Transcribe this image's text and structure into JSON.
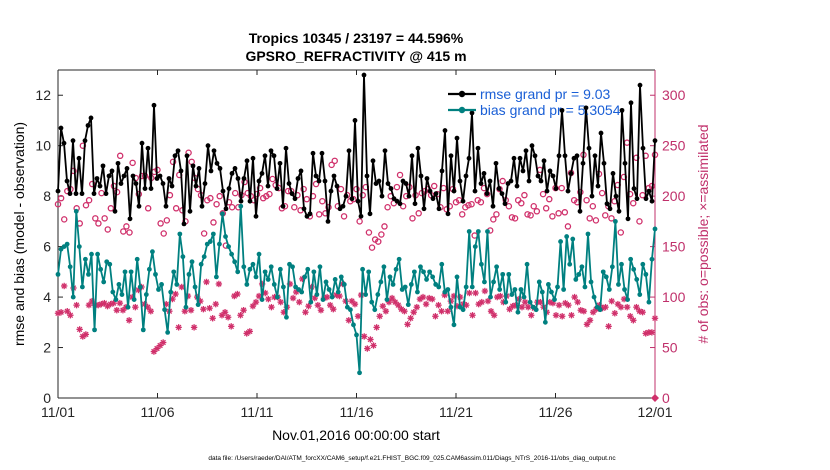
{
  "chart_data": {
    "type": "line",
    "title": "Tropics 10345 / 23197 = 44.596%",
    "subtitle": "GPSRO_REFRACTIVITY @ 415 m",
    "xlabel": "Nov.01,2016 00:00:00 start",
    "ylabel_left": "rmse and bias (model - observation)",
    "ylabel_right": "# of obs: o=possible; ×=assimilated",
    "footer": "data file: /Users/raeder/DAI/ATM_forcXX/CAM6_setup/f.e21.FHIST_BGC.f09_025.CAM6assim.011/Diags_NTrS_2016-11/obs_diag_output.nc",
    "xlim": [
      0,
      30
    ],
    "ylim_left": [
      0,
      13
    ],
    "ylim_right": [
      0,
      325
    ],
    "x_ticks": [
      {
        "x": 0,
        "label": "11/01"
      },
      {
        "x": 5,
        "label": "11/06"
      },
      {
        "x": 10,
        "label": "11/11"
      },
      {
        "x": 15,
        "label": "11/16"
      },
      {
        "x": 20,
        "label": "11/21"
      },
      {
        "x": 25,
        "label": "11/26"
      },
      {
        "x": 30,
        "label": "12/01"
      }
    ],
    "y_ticks_left": [
      {
        "v": 0,
        "label": "0"
      },
      {
        "v": 2,
        "label": "2"
      },
      {
        "v": 4,
        "label": "4"
      },
      {
        "v": 6,
        "label": "6"
      },
      {
        "v": 8,
        "label": "8"
      },
      {
        "v": 10,
        "label": "10"
      },
      {
        "v": 12,
        "label": "12"
      }
    ],
    "y_ticks_right": [
      {
        "v": 0,
        "label": "0"
      },
      {
        "v": 50,
        "label": "50"
      },
      {
        "v": 100,
        "label": "100"
      },
      {
        "v": 150,
        "label": "150"
      },
      {
        "v": 200,
        "label": "200"
      },
      {
        "v": 250,
        "label": "250"
      },
      {
        "v": 300,
        "label": "300"
      }
    ],
    "legend": {
      "placement": "top-right",
      "entries": [
        {
          "label": "rmse grand pr = 9.03",
          "color": "#000000",
          "text_color": "#1a5fd6"
        },
        {
          "label": "bias grand pr = 5.3054",
          "color": "#008080",
          "text_color": "#1a5fd6"
        }
      ]
    },
    "series": [
      {
        "name": "rmse",
        "color": "#000000",
        "values": [
          8.2,
          10.7,
          10.1,
          8.6,
          8.1,
          10.2,
          8.1,
          9.5,
          8.1,
          10.2,
          10.8,
          11.1,
          8.1,
          8.7,
          8.4,
          9.2,
          8.1,
          8.8,
          9.0,
          7.4,
          9.3,
          8.5,
          8.8,
          9.1,
          7.1,
          8.8,
          8.5,
          7.6,
          10.1,
          8.3,
          9.9,
          8.3,
          11.6,
          8.7,
          8.8,
          8.5,
          7.6,
          8.7,
          8.4,
          9.6,
          9.8,
          9.0,
          6.9,
          9.6,
          7.4,
          9.2,
          8.4,
          9.1,
          7.6,
          8.5,
          10.0,
          9.0,
          9.8,
          9.3,
          9.1,
          8.2,
          7.5,
          8.3,
          8.9,
          9.1,
          8.7,
          7.8,
          8.7,
          9.4,
          7.8,
          9.5,
          7.2,
          8.6,
          8.9,
          9.6,
          8.4,
          9.8,
          9.6,
          8.3,
          9.3,
          7.6,
          9.9,
          8.5,
          8.1,
          7.9,
          8.7,
          9.0,
          7.5,
          7.2,
          7.3,
          9.7,
          8.8,
          8.6,
          9.7,
          8.6,
          7.0,
          8.2,
          8.8,
          8.4,
          7.5,
          7.6,
          8.0,
          9.8,
          7.9,
          11.0,
          7.8,
          7.2,
          12.8,
          8.8,
          7.3,
          9.4,
          8.5,
          8.6,
          8.0,
          9.8,
          8.5,
          8.3,
          7.9,
          7.8,
          7.7,
          8.6,
          8.5,
          8.0,
          9.6,
          7.7,
          9.9,
          8.8,
          7.5,
          8.7,
          8.2,
          7.9,
          8.1,
          7.5,
          9.0,
          10.6,
          7.3,
          9.6,
          8.2,
          10.3,
          8.6,
          7.8,
          8.8,
          9.5,
          11.3,
          8.2,
          9.9,
          8.5,
          8.9,
          8.1,
          8.6,
          7.6,
          9.3,
          8.3,
          8.1,
          7.7,
          8.5,
          8.6,
          9.5,
          8.4,
          9.5,
          9.0,
          9.8,
          8.6,
          10.0,
          9.6,
          8.8,
          8.6,
          9.4,
          8.2,
          9.0,
          8.8,
          8.3,
          9.6,
          11.4,
          9.6,
          8.2,
          8.9,
          9.5,
          9.6,
          7.4,
          9.3,
          11.5,
          9.9,
          8.0,
          9.6,
          8.4,
          10.5,
          9.3,
          7.7,
          7.5,
          8.9,
          8.0,
          7.4,
          11.4,
          9.3,
          7.1,
          11.7,
          8.3,
          7.9,
          12.4,
          9.9,
          7.9,
          8.2,
          7.8,
          10.2
        ]
      },
      {
        "name": "bias",
        "color": "#008080",
        "values": [
          4.9,
          5.9,
          6.0,
          6.1,
          5.2,
          4.0,
          7.4,
          6.0,
          4.4,
          5.5,
          4.9,
          5.7,
          2.7,
          5.7,
          5.1,
          4.6,
          5.4,
          5.3,
          4.2,
          3.9,
          4.5,
          4.1,
          5.0,
          3.6,
          5.0,
          3.9,
          5.5,
          4.4,
          2.7,
          4.1,
          5.1,
          5.8,
          4.9,
          4.3,
          4.5,
          3.5,
          2.6,
          4.2,
          5.0,
          4.5,
          6.5,
          5.6,
          3.6,
          4.9,
          5.4,
          4.4,
          3.7,
          5.3,
          5.6,
          6.1,
          6.2,
          6.5,
          4.8,
          6.1,
          7.3,
          6.4,
          6.0,
          5.7,
          5.4,
          5.0,
          7.6,
          5.2,
          4.5,
          5.1,
          5.3,
          4.8,
          5.7,
          3.9,
          5.0,
          4.7,
          5.2,
          4.5,
          4.0,
          5.1,
          4.4,
          3.2,
          5.3,
          5.2,
          4.4,
          4.3,
          4.2,
          4.8,
          5.1,
          3.8,
          5.0,
          4.1,
          5.2,
          3.9,
          4.6,
          4.3,
          4.0,
          4.7,
          4.2,
          4.8,
          4.5,
          3.6,
          3.5,
          2.9,
          2.5,
          1.0,
          5.1,
          4.1,
          5.0,
          3.8,
          3.5,
          4.1,
          4.6,
          5.2,
          3.9,
          4.8,
          4.5,
          5.1,
          5.5,
          4.3,
          4.4,
          3.7,
          4.5,
          5.0,
          4.2,
          5.2,
          5.0,
          4.7,
          5.0,
          4.8,
          4.5,
          4.4,
          5.3,
          4.2,
          4.3,
          3.6,
          2.9,
          4.8,
          3.6,
          3.5,
          4.4,
          6.6,
          4.4,
          6.0,
          6.6,
          5.3,
          4.6,
          6.6,
          4.0,
          4.6,
          5.2,
          4.3,
          4.9,
          3.8,
          4.9,
          4.1,
          4.3,
          3.4,
          4.3,
          4.0,
          5.3,
          3.8,
          3.6,
          3.5,
          4.6,
          4.2,
          3.0,
          4.5,
          4.2,
          3.9,
          4.4,
          6.2,
          4.3,
          6.4,
          5.3,
          6.3,
          4.7,
          4.9,
          5.2,
          4.4,
          6.5,
          4.6,
          4.0,
          3.6,
          3.5,
          5.0,
          4.8,
          4.3,
          5.2,
          7.0,
          4.5,
          5.3,
          4.3,
          3.9,
          5.5,
          5.1,
          4.7,
          4.1,
          5.3,
          4.9,
          3.8,
          5.5,
          6.7
        ]
      },
      {
        "name": "possible",
        "marker": "o",
        "color": "#d0306b",
        "values": [
          192,
          198,
          177,
          205,
          207,
          225,
          188,
          173,
          250,
          191,
          196,
          212,
          178,
          173,
          203,
          178,
          167,
          188,
          210,
          204,
          240,
          165,
          170,
          164,
          233,
          218,
          202,
          220,
          220,
          188,
          218,
          224,
          226,
          173,
          163,
          176,
          201,
          234,
          188,
          221,
          186,
          175,
          243,
          234,
          218,
          207,
          201,
          163,
          196,
          198,
          174,
          192,
          200,
          183,
          151,
          194,
          189,
          203,
          189,
          201,
          214,
          203,
          200,
          196,
          202,
          208,
          198,
          200,
          202,
          217,
          211,
          208,
          188,
          190,
          205,
          205,
          189,
          201,
          186,
          207,
          197,
          180,
          200,
          212,
          182,
          195,
          183,
          189,
          231,
          235,
          190,
          207,
          180,
          201,
          195,
          197,
          207,
          175,
          201,
          209,
          164,
          149,
          157,
          155,
          162,
          170,
          189,
          200,
          193,
          209,
          221,
          190,
          200,
          209,
          178,
          201,
          183,
          203,
          205,
          207,
          201,
          210,
          202,
          189,
          208,
          187,
          190,
          207,
          194,
          196,
          182,
          189,
          191,
          192,
          161,
          196,
          194,
          208,
          202,
          166,
          177,
          182,
          207,
          215,
          196,
          190,
          179,
          178,
          196,
          193,
          201,
          182,
          181,
          190,
          185,
          226,
          202,
          188,
          197,
          180,
          208,
          183,
          208,
          184,
          170,
          223,
          196,
          194,
          204,
          241,
          196,
          178,
          190,
          176,
          222,
          203,
          181,
          190,
          178,
          195,
          211,
          164,
          219,
          253,
          202,
          193,
          238,
          175,
          201,
          240,
          208,
          210,
          241
        ]
      },
      {
        "name": "assimilated",
        "marker": "x",
        "color": "#d0306b",
        "values": [
          84,
          85,
          111,
          86,
          82,
          109,
          92,
          68,
          61,
          63,
          92,
          96,
          92,
          92,
          93,
          94,
          91,
          93,
          94,
          87,
          94,
          87,
          90,
          77,
          100,
          90,
          107,
          110,
          93,
          90,
          86,
          46,
          49,
          52,
          55,
          93,
          86,
          98,
          103,
          70,
          110,
          86,
          101,
          87,
          70,
          100,
          96,
          88,
          115,
          89,
          79,
          93,
          113,
          82,
          85,
          80,
          71,
          101,
          103,
          82,
          87,
          64,
          66,
          91,
          95,
          101,
          113,
          104,
          98,
          90,
          100,
          100,
          95,
          85,
          90,
          113,
          99,
          105,
          95,
          118,
          85,
          91,
          110,
          99,
          92,
          87,
          99,
          100,
          92,
          88,
          102,
          101,
          113,
          96,
          77,
          96,
          93,
          81,
          102,
          61,
          49,
          58,
          52,
          70,
          81,
          91,
          86,
          95,
          99,
          95,
          92,
          88,
          86,
          73,
          79,
          85,
          90,
          98,
          100,
          93,
          99,
          98,
          81,
          92,
          86,
          102,
          86,
          96,
          101,
          91,
          100,
          93,
          92,
          104,
          82,
          104,
          93,
          95,
          106,
          96,
          86,
          82,
          100,
          101,
          95,
          101,
          88,
          91,
          92,
          98,
          90,
          95,
          90,
          82,
          89,
          95,
          95,
          90,
          85,
          95,
          94,
          82,
          92,
          81,
          94,
          92,
          82,
          100,
          95,
          87,
          86,
          73,
          77,
          85,
          88,
          92,
          89,
          90,
          71,
          96,
          84,
          93,
          90,
          98,
          90,
          81,
          77,
          90,
          86,
          85,
          64,
          65,
          65,
          79
        ]
      }
    ]
  }
}
